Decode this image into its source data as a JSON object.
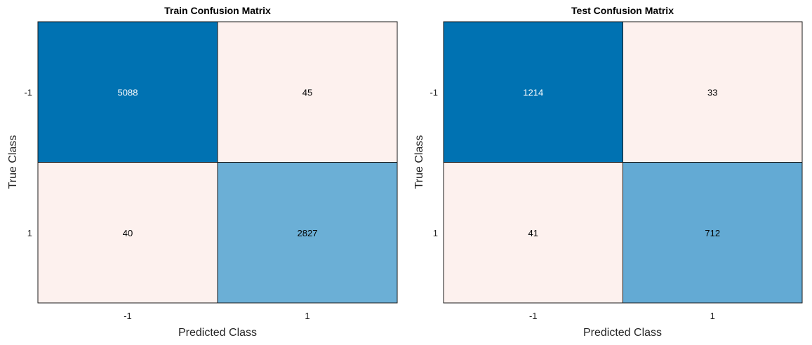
{
  "chart_data": [
    {
      "type": "heatmap",
      "title": "Train Confusion Matrix",
      "xlabel": "Predicted Class",
      "ylabel": "True Class",
      "x_categories": [
        "-1",
        "1"
      ],
      "y_categories": [
        "-1",
        "1"
      ],
      "values": [
        [
          5088,
          45
        ],
        [
          40,
          2827
        ]
      ],
      "cell_colors": [
        [
          "#0072b2",
          "#fdf1ee"
        ],
        [
          "#fdf1ee",
          "#6bafd6"
        ]
      ],
      "cell_text_colors": [
        [
          "#ffffff",
          "#000000"
        ],
        [
          "#000000",
          "#000000"
        ]
      ]
    },
    {
      "type": "heatmap",
      "title": "Test Confusion Matrix",
      "xlabel": "Predicted Class",
      "ylabel": "True Class",
      "x_categories": [
        "-1",
        "1"
      ],
      "y_categories": [
        "-1",
        "1"
      ],
      "values": [
        [
          1214,
          33
        ],
        [
          41,
          712
        ]
      ],
      "cell_colors": [
        [
          "#0072b2",
          "#fdf1ee"
        ],
        [
          "#fdf1ee",
          "#63aad4"
        ]
      ],
      "cell_text_colors": [
        [
          "#ffffff",
          "#000000"
        ],
        [
          "#000000",
          "#000000"
        ]
      ]
    }
  ]
}
